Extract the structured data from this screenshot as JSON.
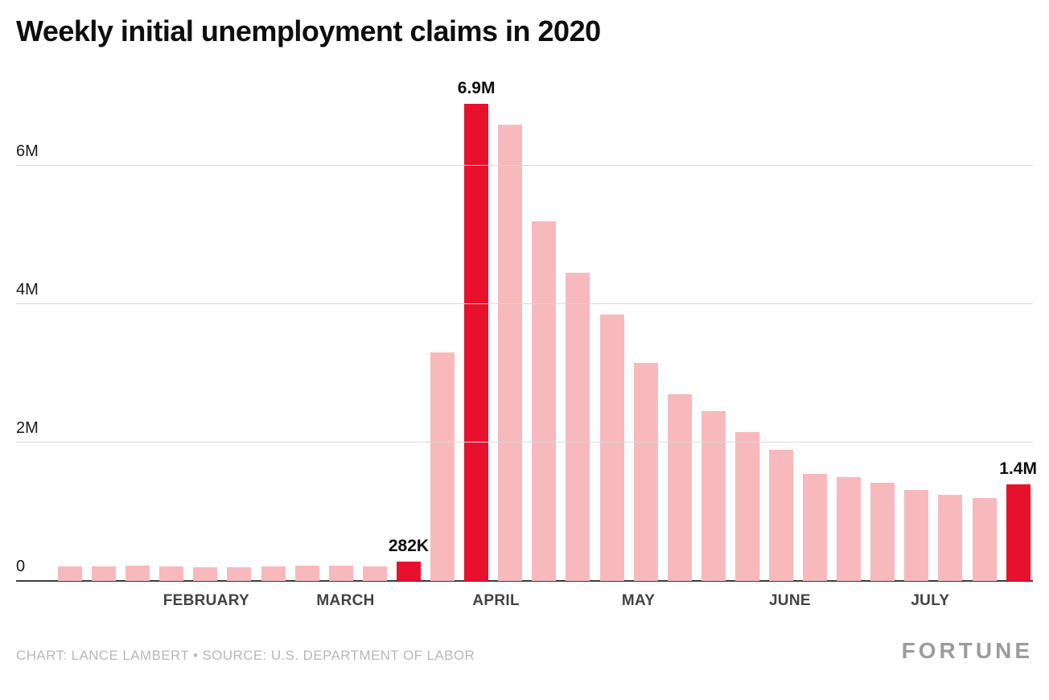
{
  "chart_data": {
    "type": "bar",
    "title": "Weekly initial unemployment claims in 2020",
    "xlabel": "",
    "ylabel": "",
    "unit": "claims per week (millions)",
    "ylim": [
      0,
      7.12
    ],
    "grid": true,
    "legend": "none",
    "yticks": [
      {
        "value": 0,
        "label": "0"
      },
      {
        "value": 2,
        "label": "2M"
      },
      {
        "value": 4,
        "label": "4M"
      },
      {
        "value": 6,
        "label": "6M"
      }
    ],
    "month_ticks": [
      {
        "label": "FEBRUARY",
        "x_pct": 18.7
      },
      {
        "label": "MARCH",
        "x_pct": 32.4
      },
      {
        "label": "APRIL",
        "x_pct": 47.2
      },
      {
        "label": "MAY",
        "x_pct": 61.2
      },
      {
        "label": "JUNE",
        "x_pct": 76.1
      },
      {
        "label": "JULY",
        "x_pct": 89.9
      }
    ],
    "bars": [
      {
        "value": 0.21,
        "highlight": false
      },
      {
        "value": 0.21,
        "highlight": false
      },
      {
        "value": 0.22,
        "highlight": false
      },
      {
        "value": 0.21,
        "highlight": false
      },
      {
        "value": 0.2,
        "highlight": false
      },
      {
        "value": 0.2,
        "highlight": false
      },
      {
        "value": 0.21,
        "highlight": false
      },
      {
        "value": 0.22,
        "highlight": false
      },
      {
        "value": 0.22,
        "highlight": false
      },
      {
        "value": 0.21,
        "highlight": false
      },
      {
        "value": 0.282,
        "highlight": true,
        "label": "282K"
      },
      {
        "value": 3.3,
        "highlight": false
      },
      {
        "value": 6.9,
        "highlight": true,
        "label": "6.9M"
      },
      {
        "value": 6.6,
        "highlight": false
      },
      {
        "value": 5.2,
        "highlight": false
      },
      {
        "value": 4.45,
        "highlight": false
      },
      {
        "value": 3.85,
        "highlight": false
      },
      {
        "value": 3.15,
        "highlight": false
      },
      {
        "value": 2.7,
        "highlight": false
      },
      {
        "value": 2.45,
        "highlight": false
      },
      {
        "value": 2.15,
        "highlight": false
      },
      {
        "value": 1.9,
        "highlight": false
      },
      {
        "value": 1.55,
        "highlight": false
      },
      {
        "value": 1.5,
        "highlight": false
      },
      {
        "value": 1.42,
        "highlight": false
      },
      {
        "value": 1.31,
        "highlight": false
      },
      {
        "value": 1.24,
        "highlight": false
      },
      {
        "value": 1.2,
        "highlight": false
      },
      {
        "value": 1.4,
        "highlight": true,
        "label": "1.4M"
      }
    ],
    "colors": {
      "bar": "#f8b9bd",
      "highlight": "#e8112d",
      "gridline": "#d9d9d9",
      "baseline": "#3c3c3c"
    }
  },
  "footer": {
    "credit": "CHART: LANCE LAMBERT • SOURCE: U.S. DEPARTMENT OF LABOR",
    "brand": "FORTUNE"
  }
}
